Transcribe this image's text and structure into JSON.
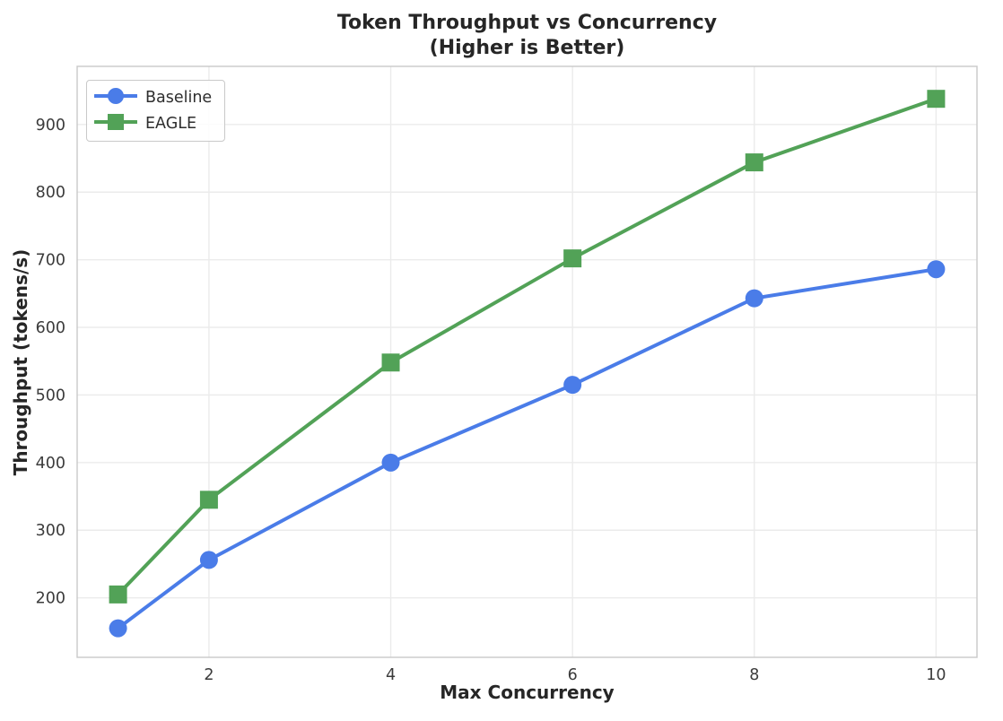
{
  "chart_data": {
    "type": "line",
    "title": "Token Throughput vs Concurrency",
    "subtitle": "(Higher is Better)",
    "xlabel": "Max Concurrency",
    "ylabel": "Throughput (tokens/s)",
    "x": [
      1,
      2,
      4,
      6,
      8,
      10
    ],
    "series": [
      {
        "name": "Baseline",
        "marker": "circle",
        "color": "#4a7ce8",
        "values": [
          155,
          256,
          400,
          515,
          643,
          686
        ]
      },
      {
        "name": "EAGLE",
        "marker": "square",
        "color": "#52a257",
        "values": [
          205,
          345,
          548,
          702,
          844,
          938
        ]
      }
    ],
    "xlim": [
      0.55,
      10.45
    ],
    "ylim": [
      112,
      986
    ],
    "xticks": [
      2,
      4,
      6,
      8,
      10
    ],
    "yticks": [
      200,
      300,
      400,
      500,
      600,
      700,
      800,
      900
    ],
    "grid": true,
    "legend_position": "upper left",
    "colors": {
      "grid": "#ebebeb",
      "plot_border": "#c9c9c9",
      "title_text": "#262626",
      "tick_text": "#3b3b3b",
      "legend_text": "#2e2e2e",
      "background": "#ffffff"
    }
  }
}
